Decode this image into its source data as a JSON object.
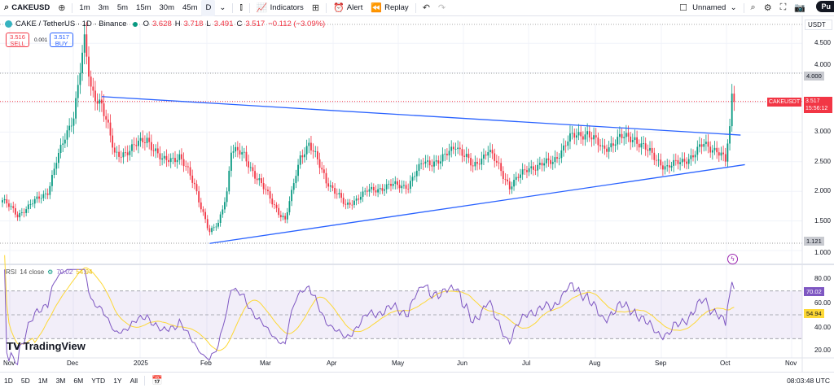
{
  "toolbar": {
    "symbol": "CAKEUSD",
    "intervals": [
      "1m",
      "3m",
      "5m",
      "15m",
      "30m",
      "45m",
      "D"
    ],
    "indicators": "Indicators",
    "alert": "Alert",
    "replay": "Replay",
    "layout_name": "Unnamed",
    "publish": "Pu"
  },
  "legend": {
    "title": "CAKE / TetherUS · 1D · Binance",
    "o_label": "O",
    "o": "3.628",
    "h_label": "H",
    "h": "3.718",
    "l_label": "L",
    "l": "3.491",
    "c_label": "C",
    "c": "3.517",
    "change": "−0.112 (−3.09%)"
  },
  "trade": {
    "sell_price": "3.516",
    "sell": "SELL",
    "spread": "0.001",
    "buy_price": "3.517",
    "buy": "BUY"
  },
  "price_axis": {
    "currency": "USDT",
    "labels": [
      "4.500",
      "4.000",
      "3.000",
      "2.500",
      "2.000",
      "1.500",
      "1.000"
    ],
    "highlight_high": "4.000",
    "highlight_low": "1.121",
    "last_tag": "CAKEUSDT",
    "last_price": "3.517",
    "countdown": "15:56:12"
  },
  "rsi": {
    "title": "RSI",
    "params": "14 close",
    "value": "70.02",
    "ma": "54.94",
    "labels": [
      "80.00",
      "60.00",
      "40.00",
      "20.00"
    ]
  },
  "time_axis": [
    "Nov",
    "Dec",
    "2025",
    "Feb",
    "Mar",
    "Apr",
    "May",
    "Jun",
    "Jul",
    "Aug",
    "Sep",
    "Oct",
    "Nov"
  ],
  "ranges": [
    "1D",
    "5D",
    "1M",
    "3M",
    "6M",
    "YTD",
    "1Y",
    "All"
  ],
  "clock": "08:03:48 UTC",
  "brand": "TradingView",
  "colors": {
    "up": "#089981",
    "down": "#f23645",
    "trend": "#2962ff",
    "rsi": "#7e57c2",
    "rsi_ma": "#fdd835"
  },
  "chart_data": {
    "type": "candlestick",
    "symbol": "CAKEUSDT",
    "days": 340,
    "close_keypoints": [
      [
        0,
        1.85
      ],
      [
        7,
        1.6
      ],
      [
        14,
        1.8
      ],
      [
        21,
        2.0
      ],
      [
        25,
        2.5
      ],
      [
        29,
        2.9
      ],
      [
        33,
        3.3
      ],
      [
        37,
        4.3
      ],
      [
        38,
        4.5
      ],
      [
        41,
        3.7
      ],
      [
        46,
        3.5
      ],
      [
        50,
        2.9
      ],
      [
        52,
        2.6
      ],
      [
        59,
        2.7
      ],
      [
        67,
        2.9
      ],
      [
        74,
        2.5
      ],
      [
        82,
        2.6
      ],
      [
        89,
        2.1
      ],
      [
        96,
        1.3
      ],
      [
        100,
        1.45
      ],
      [
        104,
        2.0
      ],
      [
        106,
        2.7
      ],
      [
        112,
        2.6
      ],
      [
        120,
        2.1
      ],
      [
        131,
        1.5
      ],
      [
        138,
        2.6
      ],
      [
        142,
        2.8
      ],
      [
        150,
        2.2
      ],
      [
        159,
        1.75
      ],
      [
        169,
        2.0
      ],
      [
        180,
        2.1
      ],
      [
        188,
        2.1
      ],
      [
        195,
        2.5
      ],
      [
        203,
        2.5
      ],
      [
        210,
        2.8
      ],
      [
        218,
        2.4
      ],
      [
        225,
        2.7
      ],
      [
        235,
        2.1
      ],
      [
        244,
        2.4
      ],
      [
        255,
        2.5
      ],
      [
        263,
        2.9
      ],
      [
        271,
        3.0
      ],
      [
        278,
        2.7
      ],
      [
        286,
        2.9
      ],
      [
        293,
        2.9
      ],
      [
        301,
        2.6
      ],
      [
        308,
        2.4
      ],
      [
        320,
        2.6
      ],
      [
        325,
        2.8
      ],
      [
        331,
        2.7
      ],
      [
        335,
        2.5
      ],
      [
        337,
        3.1
      ],
      [
        338,
        3.65
      ],
      [
        339,
        3.517
      ]
    ],
    "ylim": [
      1.0,
      4.6
    ],
    "trendlines": [
      {
        "from": [
          46,
          3.6
        ],
        "to": [
          342,
          2.95
        ]
      },
      {
        "from": [
          96,
          1.12
        ],
        "to": [
          344,
          2.45
        ]
      }
    ]
  }
}
